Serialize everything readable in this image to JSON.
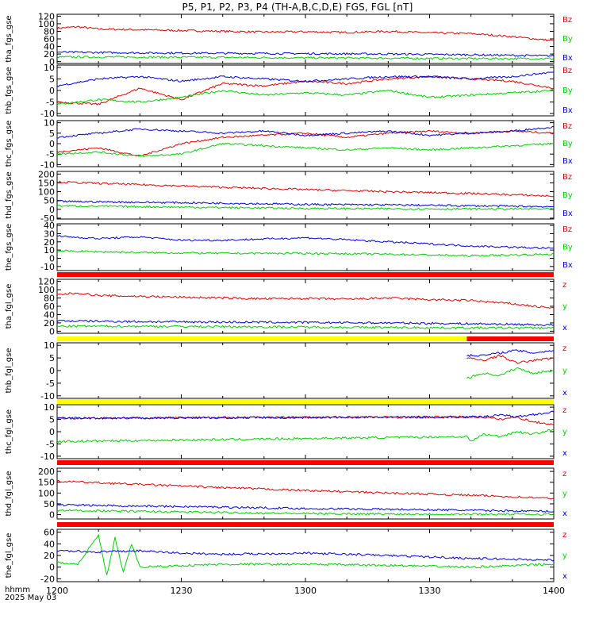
{
  "title": "P5, P1, P2, P3, P4 (TH-A,B,C,D,E) FGS, FGL [nT]",
  "footer": {
    "xunit": "hhmm",
    "date": "2025 May 03"
  },
  "x_ticks": [
    "1200",
    "1230",
    "1300",
    "1330",
    "1400"
  ],
  "colors": {
    "z": "#e00000",
    "y": "#00d000",
    "x": "#0000e0",
    "red_bar": "#ff0000",
    "yellow_bar": "#ffff00"
  },
  "chart_data": [
    {
      "type": "line",
      "ylabel": "tha_fgs_gse",
      "ylim": [
        -5,
        125
      ],
      "yticks": [
        "120",
        "100",
        "80",
        "60",
        "40",
        "20",
        "0"
      ],
      "yvals": [
        120,
        100,
        80,
        60,
        40,
        20,
        0
      ],
      "legend": [
        "Bz",
        "By",
        "Bx"
      ],
      "series": [
        {
          "name": "Bz",
          "color": "#e00000",
          "x": [
            0,
            5,
            10,
            20,
            30,
            40,
            50,
            60,
            70,
            80,
            90,
            100,
            110,
            120
          ],
          "values": [
            88,
            92,
            86,
            84,
            82,
            80,
            78,
            79,
            77,
            80,
            76,
            74,
            66,
            55
          ]
        },
        {
          "name": "By",
          "color": "#00d000",
          "x": [
            0,
            20,
            40,
            60,
            80,
            100,
            120
          ],
          "values": [
            12,
            12,
            11,
            10,
            9,
            8,
            8
          ]
        },
        {
          "name": "Bx",
          "color": "#0000e0",
          "x": [
            0,
            20,
            40,
            60,
            80,
            100,
            120
          ],
          "values": [
            25,
            23,
            22,
            21,
            20,
            18,
            15
          ]
        }
      ]
    },
    {
      "type": "line",
      "ylabel": "thb_fgs_gse",
      "ylim": [
        -11,
        11
      ],
      "yticks": [
        "10",
        "5",
        "0",
        "-5",
        "-10"
      ],
      "yvals": [
        10,
        5,
        0,
        -5,
        -10
      ],
      "legend": [
        "Bz",
        "By",
        "Bx"
      ],
      "series": [
        {
          "name": "Bz",
          "color": "#e00000",
          "x": [
            0,
            10,
            20,
            30,
            40,
            50,
            60,
            70,
            80,
            90,
            100,
            110,
            120
          ],
          "values": [
            -5,
            -6,
            1,
            -4,
            3,
            2,
            4,
            3,
            5,
            6,
            5,
            4,
            1
          ]
        },
        {
          "name": "By",
          "color": "#00d000",
          "x": [
            0,
            10,
            20,
            30,
            40,
            50,
            60,
            70,
            80,
            90,
            100,
            110,
            120
          ],
          "values": [
            -6,
            -4,
            -5,
            -3,
            0,
            -2,
            -1,
            -2,
            0,
            -3,
            -2,
            -1,
            0
          ]
        },
        {
          "name": "Bx",
          "color": "#0000e0",
          "x": [
            0,
            10,
            20,
            30,
            40,
            50,
            60,
            70,
            80,
            90,
            100,
            110,
            120
          ],
          "values": [
            2,
            5,
            6,
            4,
            6,
            5,
            4,
            5,
            6,
            6,
            5,
            6,
            8
          ]
        }
      ]
    },
    {
      "type": "line",
      "ylabel": "thc_fgs_gse",
      "ylim": [
        -11,
        11
      ],
      "yticks": [
        "10",
        "5",
        "0",
        "-5",
        "-10"
      ],
      "yvals": [
        10,
        5,
        0,
        -5,
        -10
      ],
      "legend": [
        "Bz",
        "By",
        "Bx"
      ],
      "series": [
        {
          "name": "Bz",
          "color": "#e00000",
          "x": [
            0,
            10,
            20,
            30,
            40,
            50,
            60,
            70,
            80,
            90,
            100,
            110,
            120
          ],
          "values": [
            -4,
            -2,
            -6,
            0,
            3,
            4,
            5,
            3,
            5,
            6,
            5,
            6,
            5
          ]
        },
        {
          "name": "By",
          "color": "#00d000",
          "x": [
            0,
            10,
            20,
            30,
            40,
            50,
            60,
            70,
            80,
            90,
            100,
            110,
            120
          ],
          "values": [
            -5,
            -4,
            -6,
            -5,
            0,
            -1,
            -2,
            -3,
            -2,
            -3,
            -2,
            -1,
            0
          ]
        },
        {
          "name": "Bx",
          "color": "#0000e0",
          "x": [
            0,
            10,
            20,
            30,
            40,
            50,
            60,
            70,
            80,
            90,
            100,
            110,
            120
          ],
          "values": [
            3,
            5,
            7,
            6,
            5,
            6,
            4,
            5,
            6,
            4,
            5,
            6,
            8
          ]
        }
      ]
    },
    {
      "type": "line",
      "ylabel": "thd_fgs_gse",
      "ylim": [
        -55,
        215
      ],
      "yticks": [
        "200",
        "150",
        "100",
        "50",
        "0",
        "-50"
      ],
      "yvals": [
        200,
        150,
        100,
        50,
        0,
        -50
      ],
      "legend": [
        "Bz",
        "By",
        "Bx"
      ],
      "series": [
        {
          "name": "Bz",
          "color": "#e00000",
          "x": [
            0,
            20,
            40,
            60,
            80,
            100,
            120
          ],
          "values": [
            155,
            140,
            125,
            112,
            100,
            90,
            75
          ]
        },
        {
          "name": "By",
          "color": "#00d000",
          "x": [
            0,
            20,
            40,
            60,
            80,
            100,
            120
          ],
          "values": [
            20,
            15,
            10,
            5,
            3,
            2,
            2
          ]
        },
        {
          "name": "Bx",
          "color": "#0000e0",
          "x": [
            0,
            20,
            40,
            60,
            80,
            100,
            120
          ],
          "values": [
            45,
            40,
            35,
            28,
            25,
            20,
            15
          ]
        }
      ]
    },
    {
      "type": "line",
      "ylabel": "the_fgs_gse",
      "ylim": [
        -15,
        42
      ],
      "yticks": [
        "40",
        "30",
        "20",
        "10",
        "0",
        "-10"
      ],
      "yvals": [
        40,
        30,
        20,
        10,
        0,
        -10
      ],
      "legend": [
        "Bz",
        "By",
        "Bx"
      ],
      "bar": [
        "red_bar"
      ],
      "series": [
        {
          "name": "By",
          "color": "#00d000",
          "x": [
            0,
            20,
            40,
            60,
            80,
            100,
            120
          ],
          "values": [
            9,
            7,
            6,
            6,
            5,
            3,
            5
          ]
        },
        {
          "name": "Bx",
          "color": "#0000e0",
          "x": [
            0,
            10,
            20,
            30,
            40,
            60,
            80,
            100,
            120
          ],
          "values": [
            27,
            24,
            26,
            22,
            22,
            25,
            20,
            15,
            12
          ]
        }
      ]
    },
    {
      "type": "line",
      "ylabel": "tha_fgl_gse",
      "ylim": [
        -5,
        125
      ],
      "yticks": [
        "120",
        "100",
        "80",
        "60",
        "40",
        "20",
        "0"
      ],
      "yvals": [
        120,
        100,
        80,
        60,
        40,
        20,
        0
      ],
      "legend": [
        "z",
        "y",
        "x"
      ],
      "bar": [
        "yellow_bar_then_red"
      ],
      "series": [
        {
          "name": "z",
          "color": "#e00000",
          "x": [
            0,
            5,
            10,
            20,
            30,
            40,
            50,
            60,
            70,
            80,
            90,
            100,
            110,
            120
          ],
          "values": [
            88,
            92,
            86,
            84,
            82,
            80,
            78,
            79,
            77,
            80,
            76,
            74,
            66,
            55
          ]
        },
        {
          "name": "y",
          "color": "#00d000",
          "x": [
            0,
            20,
            40,
            60,
            80,
            100,
            120
          ],
          "values": [
            12,
            12,
            11,
            10,
            9,
            8,
            8
          ]
        },
        {
          "name": "x",
          "color": "#0000e0",
          "x": [
            0,
            20,
            40,
            60,
            80,
            100,
            120
          ],
          "values": [
            25,
            23,
            22,
            21,
            20,
            18,
            15
          ]
        }
      ]
    },
    {
      "type": "line",
      "ylabel": "thb_fgl_gse",
      "ylim": [
        -11,
        11
      ],
      "yticks": [
        "10",
        "5",
        "0",
        "-5",
        "-10"
      ],
      "yvals": [
        10,
        5,
        0,
        -5,
        -10
      ],
      "legend": [
        "z",
        "y",
        "x"
      ],
      "bar": [
        "yellow_bar"
      ],
      "series": [
        {
          "name": "z",
          "color": "#e00000",
          "x": [
            99,
            103,
            107,
            111,
            115,
            120
          ],
          "values": [
            5,
            4,
            6,
            3,
            4,
            5
          ]
        },
        {
          "name": "y",
          "color": "#00d000",
          "x": [
            99,
            103,
            107,
            111,
            115,
            120
          ],
          "values": [
            -3,
            -1,
            -2,
            1,
            -1,
            0
          ]
        },
        {
          "name": "x",
          "color": "#0000e0",
          "x": [
            99,
            103,
            107,
            111,
            115,
            120
          ],
          "values": [
            6,
            6,
            7,
            8,
            7,
            8
          ]
        }
      ]
    },
    {
      "type": "line",
      "ylabel": "thc_fgl_gse",
      "ylim": [
        -11,
        11
      ],
      "yticks": [
        "10",
        "5",
        "0",
        "-5",
        "-10"
      ],
      "yvals": [
        10,
        5,
        0,
        -5,
        -10
      ],
      "legend": [
        "z",
        "y",
        "x"
      ],
      "bar": [
        "red_bar"
      ],
      "series": [
        {
          "name": "z",
          "color": "#e00000",
          "x": [
            0,
            99,
            103,
            107,
            111,
            115,
            120
          ],
          "values": [
            5.5,
            6,
            6,
            5,
            6,
            4,
            3
          ]
        },
        {
          "name": "y",
          "color": "#00d000",
          "x": [
            0,
            99,
            100,
            103,
            107,
            111,
            115,
            120
          ],
          "values": [
            -4,
            -2,
            -4,
            -1,
            -2,
            0,
            -1,
            1
          ]
        },
        {
          "name": "x",
          "color": "#0000e0",
          "x": [
            0,
            99,
            103,
            107,
            111,
            115,
            120
          ],
          "values": [
            5.5,
            6,
            6,
            7,
            6,
            7,
            8
          ]
        }
      ]
    },
    {
      "type": "line",
      "ylabel": "thd_fgl_gse",
      "ylim": [
        -20,
        215
      ],
      "yticks": [
        "200",
        "150",
        "100",
        "50",
        "0"
      ],
      "yvals": [
        200,
        150,
        100,
        50,
        0
      ],
      "legend": [
        "z",
        "y",
        "x"
      ],
      "bar": [
        "red_bar"
      ],
      "series": [
        {
          "name": "z",
          "color": "#e00000",
          "x": [
            0,
            20,
            40,
            60,
            80,
            100,
            120
          ],
          "values": [
            155,
            140,
            125,
            112,
            100,
            90,
            75
          ]
        },
        {
          "name": "y",
          "color": "#00d000",
          "x": [
            0,
            20,
            40,
            60,
            80,
            100,
            120
          ],
          "values": [
            20,
            15,
            10,
            5,
            3,
            2,
            2
          ]
        },
        {
          "name": "x",
          "color": "#0000e0",
          "x": [
            0,
            20,
            40,
            60,
            80,
            100,
            120
          ],
          "values": [
            45,
            40,
            35,
            28,
            25,
            20,
            15
          ]
        }
      ]
    },
    {
      "type": "line",
      "ylabel": "the_fgl_gse",
      "ylim": [
        -25,
        65
      ],
      "yticks": [
        "60",
        "40",
        "20",
        "0",
        "-20"
      ],
      "yvals": [
        60,
        40,
        20,
        0,
        -20
      ],
      "legend": [
        "z",
        "y",
        "x"
      ],
      "series": [
        {
          "name": "y",
          "color": "#00d000",
          "x": [
            0,
            5,
            10,
            12,
            14,
            16,
            18,
            20,
            40,
            60,
            80,
            100,
            120
          ],
          "values": [
            8,
            5,
            55,
            -15,
            50,
            -10,
            40,
            0,
            5,
            5,
            3,
            0,
            5
          ]
        },
        {
          "name": "x",
          "color": "#0000e0",
          "x": [
            0,
            10,
            20,
            30,
            40,
            60,
            80,
            100,
            120
          ],
          "values": [
            28,
            26,
            28,
            24,
            22,
            24,
            20,
            15,
            12
          ]
        }
      ]
    }
  ]
}
